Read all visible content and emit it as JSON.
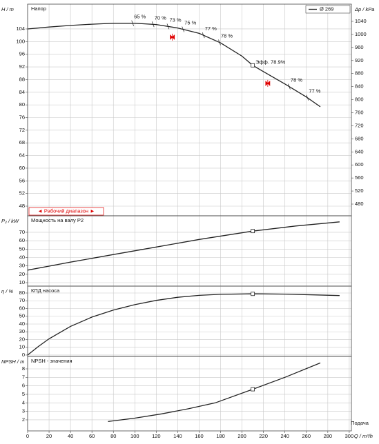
{
  "chart_data": [
    {
      "type": "line",
      "title": "Напор",
      "ylabel": "H / m",
      "y2label": "Δp / kPa",
      "x": [
        0,
        20,
        40,
        60,
        80,
        100,
        120,
        140,
        160,
        180,
        200,
        210,
        220,
        240,
        260,
        273
      ],
      "series": [
        {
          "name": "Ø 269",
          "color": "#222222",
          "values": [
            104,
            104.6,
            105.1,
            105.5,
            105.8,
            105.8,
            105.4,
            104.3,
            102.6,
            99.6,
            95.4,
            92.5,
            90.5,
            86.6,
            82.5,
            79.4
          ]
        }
      ],
      "xlim": [
        0,
        302
      ],
      "ylim": [
        44.95,
        111.84
      ],
      "yticks": [
        48,
        52,
        56,
        60,
        64,
        68,
        72,
        76,
        80,
        84,
        88,
        92,
        96,
        100,
        104
      ],
      "y2lim": [
        444.1,
        1092.8
      ],
      "y2ticks": [
        480,
        520,
        560,
        600,
        640,
        680,
        720,
        760,
        800,
        840,
        880,
        920,
        960,
        1000,
        1040
      ],
      "grid": true,
      "legend": "upper right",
      "marker_x": 210,
      "annotations": [
        {
          "x": 98,
          "text": "65 %"
        },
        {
          "x": 117,
          "text": "70 %"
        },
        {
          "x": 131,
          "text": "73 %"
        },
        {
          "x": 145,
          "text": "75 %"
        },
        {
          "x": 164,
          "text": "77 %"
        },
        {
          "x": 179,
          "text": "78 %"
        },
        {
          "x": 210,
          "text": "Эфф. 78.9%"
        },
        {
          "x": 244,
          "text": "78 %"
        },
        {
          "x": 261,
          "text": "77 %"
        }
      ],
      "range_label": "◄ Рабочий диапазон ►",
      "range_color": "#e00000",
      "range_limits": [
        {
          "x": 135,
          "y": 101.4
        },
        {
          "x": 224,
          "y": 86.8
        }
      ]
    },
    {
      "type": "line",
      "title": "Мощность на валу P2",
      "ylabel": "P₂ / kW",
      "x": [
        0,
        40,
        80,
        120,
        160,
        210,
        250,
        291
      ],
      "series": [
        {
          "color": "#222222",
          "values": [
            25,
            34.5,
            43.5,
            52.5,
            61.5,
            71.5,
            77.5,
            82.5
          ]
        }
      ],
      "xlim": [
        0,
        302
      ],
      "ylim": [
        5.9,
        89.7
      ],
      "yticks": [
        10,
        20,
        30,
        40,
        50,
        60,
        70
      ],
      "grid": true,
      "marker_x": 210
    },
    {
      "type": "line",
      "title": "КПД насоса",
      "ylabel": "η / %",
      "x": [
        0,
        10,
        20,
        40,
        60,
        80,
        100,
        120,
        140,
        160,
        180,
        210,
        240,
        270,
        291
      ],
      "series": [
        {
          "color": "#222222",
          "values": [
            0,
            11,
            21,
            37,
            49,
            58,
            65,
            70.5,
            74.5,
            77,
            78.3,
            78.9,
            78.6,
            77.5,
            76.7
          ]
        }
      ],
      "xlim": [
        0,
        302
      ],
      "ylim": [
        -1.8,
        88.9
      ],
      "yticks": [
        0,
        10,
        20,
        30,
        40,
        50,
        60,
        70,
        80
      ],
      "grid": true,
      "marker_x": 210
    },
    {
      "type": "line",
      "title": "NPSH - значения",
      "ylabel": "NPSH / m",
      "xlabel": "Q / m³/h",
      "footer": "Подача",
      "x": [
        75,
        100,
        125,
        150,
        175,
        210,
        240,
        273
      ],
      "series": [
        {
          "color": "#222222",
          "values": [
            1.8,
            2.2,
            2.7,
            3.3,
            4.0,
            5.6,
            7.0,
            8.7
          ]
        }
      ],
      "xlim": [
        0,
        302
      ],
      "ylim": [
        0.7,
        9.46
      ],
      "yticks": [
        2,
        3,
        4,
        5,
        6,
        7,
        8
      ],
      "xticks": [
        0,
        20,
        40,
        60,
        80,
        100,
        120,
        140,
        160,
        180,
        200,
        220,
        240,
        260,
        280,
        300
      ],
      "grid": true,
      "marker_x": 210
    }
  ]
}
